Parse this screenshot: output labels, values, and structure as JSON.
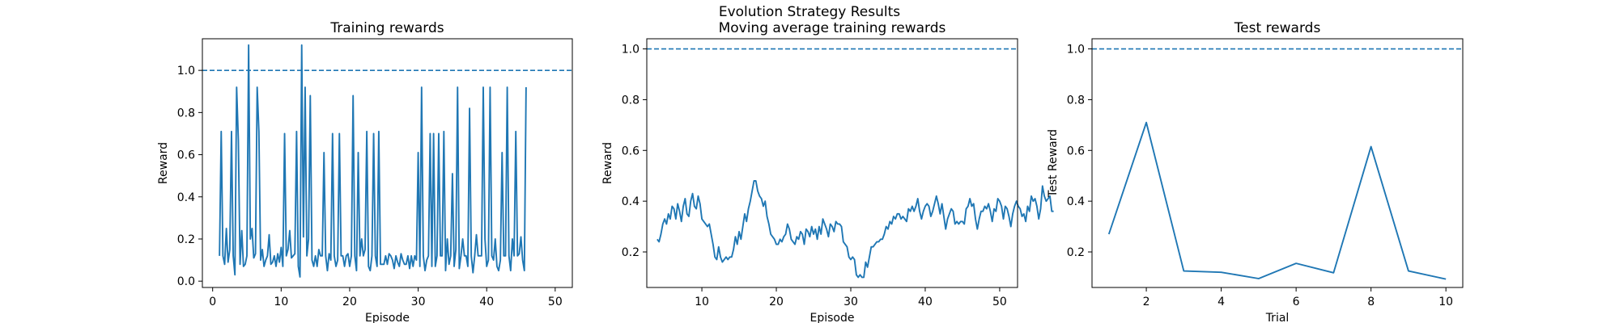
{
  "figure": {
    "suptitle": "Evolution Strategy Results"
  },
  "chart_data": [
    {
      "type": "line",
      "title": "Training rewards",
      "xlabel": "Episode",
      "ylabel": "Reward",
      "xlim": [
        -1.5,
        52.5
      ],
      "ylim": [
        -0.03,
        1.15
      ],
      "xticks": [
        0,
        10,
        20,
        30,
        40,
        50
      ],
      "yticks": [
        0.0,
        0.2,
        0.4,
        0.6,
        0.8,
        1.0
      ],
      "ytick_decimals": 1,
      "grid": false,
      "reference_line": {
        "y": 1.0,
        "style": "dashed"
      },
      "color": "#1f77b4",
      "x_start": 1,
      "x_step": 0.25,
      "values": [
        0.12,
        0.71,
        0.12,
        0.08,
        0.25,
        0.09,
        0.15,
        0.71,
        0.12,
        0.03,
        0.92,
        0.67,
        0.08,
        0.24,
        0.07,
        0.08,
        0.12,
        1.12,
        0.2,
        0.25,
        0.11,
        0.13,
        0.92,
        0.71,
        0.1,
        0.15,
        0.07,
        0.1,
        0.12,
        0.22,
        0.08,
        0.09,
        0.12,
        0.07,
        0.13,
        0.09,
        0.16,
        0.07,
        0.7,
        0.12,
        0.15,
        0.24,
        0.11,
        0.12,
        0.13,
        0.71,
        0.07,
        0.02,
        1.12,
        0.21,
        0.92,
        0.12,
        0.2,
        0.88,
        0.1,
        0.07,
        0.12,
        0.07,
        0.15,
        0.12,
        0.12,
        0.61,
        0.12,
        0.05,
        0.13,
        0.1,
        0.7,
        0.12,
        0.07,
        0.1,
        0.7,
        0.12,
        0.12,
        0.07,
        0.12,
        0.13,
        0.07,
        0.12,
        0.88,
        0.12,
        0.05,
        0.61,
        0.12,
        0.2,
        0.12,
        0.15,
        0.71,
        0.07,
        0.05,
        0.12,
        0.7,
        0.12,
        0.07,
        0.71,
        0.08,
        0.08,
        0.08,
        0.12,
        0.08,
        0.13,
        0.12,
        0.1,
        0.06,
        0.12,
        0.09,
        0.07,
        0.13,
        0.1,
        0.08,
        0.08,
        0.12,
        0.06,
        0.12,
        0.07,
        0.12,
        0.1,
        0.61,
        0.07,
        0.92,
        0.12,
        0.05,
        0.1,
        0.12,
        0.7,
        0.07,
        0.7,
        0.07,
        0.12,
        0.7,
        0.12,
        0.12,
        0.71,
        0.05,
        0.2,
        0.08,
        0.12,
        0.51,
        0.07,
        0.15,
        0.92,
        0.06,
        0.12,
        0.2,
        0.12,
        0.12,
        0.07,
        0.82,
        0.12,
        0.04,
        0.12,
        0.22,
        0.12,
        0.12,
        0.12,
        0.92,
        0.2,
        0.07,
        0.1,
        0.92,
        0.12,
        0.1,
        0.2,
        0.07,
        0.05,
        0.1,
        0.61,
        0.12,
        0.12,
        0.92,
        0.12,
        0.05,
        0.2,
        0.12,
        0.71,
        0.12,
        0.13,
        0.21,
        0.1,
        0.05,
        0.92
      ]
    },
    {
      "type": "line",
      "title": "Moving average training rewards",
      "xlabel": "Episode",
      "ylabel": "Reward",
      "xlim": [
        2.6,
        52.4
      ],
      "ylim": [
        0.06,
        1.04
      ],
      "xticks": [
        10,
        20,
        30,
        40,
        50
      ],
      "yticks": [
        0.2,
        0.4,
        0.6,
        0.8,
        1.0
      ],
      "ytick_decimals": 1,
      "grid": false,
      "reference_line": {
        "y": 1.0,
        "style": "dashed"
      },
      "color": "#1f77b4",
      "x_start": 4,
      "x_step": 0.25,
      "values": [
        0.25,
        0.24,
        0.27,
        0.31,
        0.33,
        0.31,
        0.35,
        0.33,
        0.38,
        0.37,
        0.33,
        0.39,
        0.36,
        0.32,
        0.38,
        0.41,
        0.35,
        0.34,
        0.4,
        0.43,
        0.38,
        0.37,
        0.42,
        0.39,
        0.33,
        0.32,
        0.31,
        0.3,
        0.31,
        0.27,
        0.23,
        0.18,
        0.17,
        0.22,
        0.18,
        0.16,
        0.17,
        0.18,
        0.17,
        0.18,
        0.18,
        0.21,
        0.26,
        0.23,
        0.28,
        0.25,
        0.3,
        0.35,
        0.32,
        0.37,
        0.4,
        0.44,
        0.48,
        0.48,
        0.44,
        0.42,
        0.41,
        0.38,
        0.4,
        0.34,
        0.31,
        0.27,
        0.26,
        0.25,
        0.23,
        0.23,
        0.25,
        0.24,
        0.26,
        0.27,
        0.31,
        0.29,
        0.25,
        0.24,
        0.23,
        0.26,
        0.25,
        0.28,
        0.27,
        0.23,
        0.29,
        0.28,
        0.26,
        0.3,
        0.27,
        0.29,
        0.25,
        0.3,
        0.27,
        0.33,
        0.31,
        0.29,
        0.26,
        0.31,
        0.3,
        0.28,
        0.32,
        0.31,
        0.31,
        0.3,
        0.24,
        0.23,
        0.22,
        0.18,
        0.17,
        0.18,
        0.17,
        0.11,
        0.1,
        0.11,
        0.1,
        0.1,
        0.16,
        0.14,
        0.18,
        0.22,
        0.22,
        0.23,
        0.24,
        0.24,
        0.25,
        0.25,
        0.27,
        0.3,
        0.29,
        0.32,
        0.31,
        0.34,
        0.33,
        0.35,
        0.35,
        0.33,
        0.34,
        0.33,
        0.32,
        0.37,
        0.36,
        0.38,
        0.36,
        0.38,
        0.41,
        0.36,
        0.33,
        0.36,
        0.38,
        0.39,
        0.38,
        0.34,
        0.36,
        0.39,
        0.42,
        0.39,
        0.35,
        0.39,
        0.34,
        0.29,
        0.33,
        0.35,
        0.37,
        0.36,
        0.31,
        0.32,
        0.31,
        0.32,
        0.32,
        0.31,
        0.37,
        0.38,
        0.41,
        0.38,
        0.39,
        0.33,
        0.29,
        0.33,
        0.36,
        0.36,
        0.38,
        0.37,
        0.39,
        0.36,
        0.32,
        0.37,
        0.36,
        0.41,
        0.4,
        0.38,
        0.33,
        0.38,
        0.37,
        0.34,
        0.3,
        0.35,
        0.38,
        0.4,
        0.38,
        0.37,
        0.34,
        0.35,
        0.32,
        0.38,
        0.36,
        0.42,
        0.4,
        0.41,
        0.38,
        0.33,
        0.37,
        0.46,
        0.42,
        0.4,
        0.41,
        0.42,
        0.36,
        0.36
      ]
    },
    {
      "type": "line",
      "title": "Test rewards",
      "xlabel": "Trial",
      "ylabel": "Test Reward",
      "xlim": [
        0.55,
        10.45
      ],
      "ylim": [
        0.06,
        1.04
      ],
      "xticks": [
        2,
        4,
        6,
        8,
        10
      ],
      "yticks": [
        0.2,
        0.4,
        0.6,
        0.8,
        1.0
      ],
      "ytick_decimals": 1,
      "grid": false,
      "reference_line": {
        "y": 1.0,
        "style": "dashed"
      },
      "color": "#1f77b4",
      "x": [
        1,
        2,
        3,
        4,
        5,
        6,
        7,
        8,
        9,
        10
      ],
      "values": [
        0.27,
        0.71,
        0.125,
        0.12,
        0.095,
        0.155,
        0.118,
        0.615,
        0.125,
        0.093
      ]
    }
  ]
}
